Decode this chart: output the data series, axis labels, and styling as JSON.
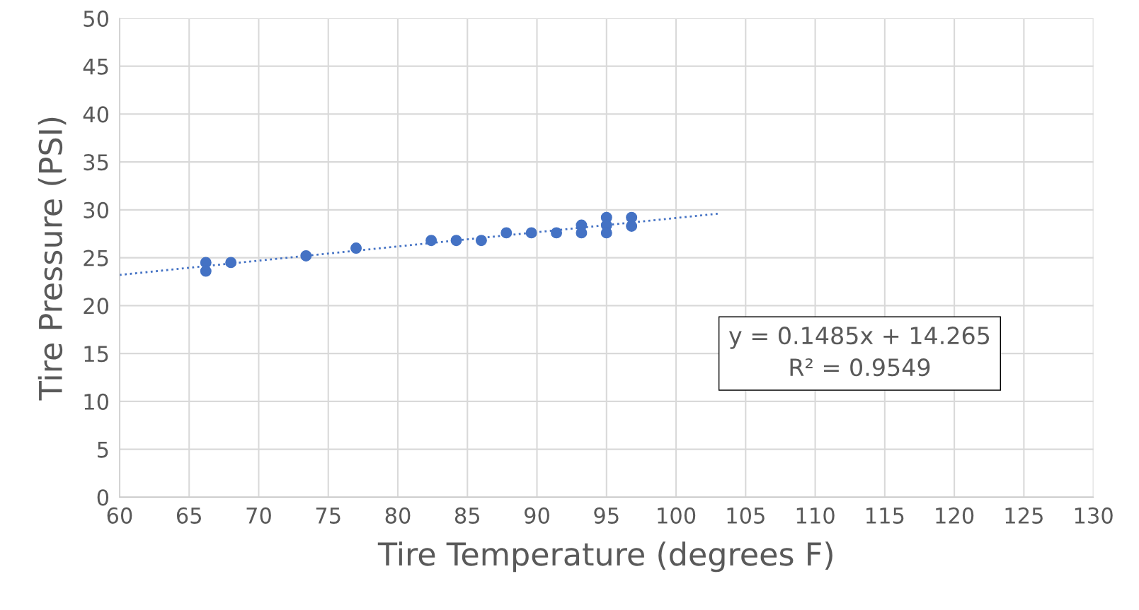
{
  "chart_data": {
    "type": "scatter",
    "xlabel": "Tire Temperature (degrees F)",
    "ylabel": "Tire Pressure (PSI)",
    "series": [
      {
        "color": "#4472c4",
        "marker": "circle",
        "x": [
          66.2,
          66.2,
          68.0,
          73.4,
          77.0,
          82.4,
          84.2,
          86.0,
          87.8,
          89.6,
          91.4,
          93.2,
          93.2,
          95.0,
          95.0,
          95.0,
          96.8,
          96.8
        ],
        "values": [
          24.5,
          23.6,
          24.5,
          25.2,
          26.0,
          26.8,
          26.8,
          26.8,
          27.6,
          27.6,
          27.6,
          28.4,
          27.6,
          29.2,
          28.4,
          27.6,
          29.2,
          28.3
        ]
      },
      {
        "type": "line",
        "color": "#4472c4",
        "line_style": "dotted",
        "marker": "none",
        "x": [
          60,
          103
        ],
        "values": [
          23.2,
          29.6
        ]
      }
    ],
    "xlim": [
      60,
      130
    ],
    "xticks": [
      60,
      65,
      70,
      75,
      80,
      85,
      90,
      95,
      100,
      105,
      110,
      115,
      120,
      125,
      130
    ],
    "ylim": [
      0,
      50
    ],
    "yticks": [
      0,
      5,
      10,
      15,
      20,
      25,
      30,
      35,
      40,
      45,
      50
    ],
    "grid": true,
    "legend": false,
    "annotations": [
      "y = 0.1485x + 14.265\nR² = 0.9549"
    ]
  }
}
